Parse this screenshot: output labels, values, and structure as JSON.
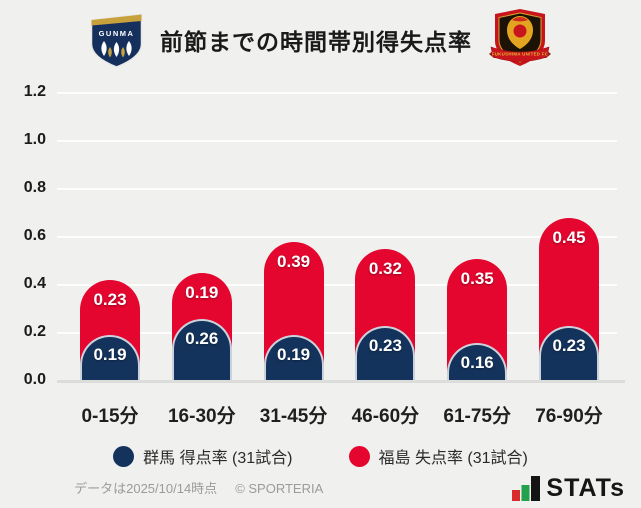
{
  "header": {
    "title": "前節までの時間帯別得失点率",
    "left_logo": "群馬 (GUNMA) クラブエンブレム",
    "right_logo": "福島 (FUKUSHIMA UNITED FC) クラブエンブレム",
    "left_logo_text": "GUNMA",
    "right_logo_text": "FUKUSHIMA UNITED FC"
  },
  "chart_data": {
    "type": "bar",
    "stacked": true,
    "title": "前節までの時間帯別得失点率",
    "categories": [
      "0-15分",
      "16-30分",
      "31-45分",
      "46-60分",
      "61-75分",
      "76-90分"
    ],
    "series": [
      {
        "name": "群馬 得点率 (31試合)",
        "color": "#14335c",
        "values": [
          0.19,
          0.26,
          0.19,
          0.23,
          0.16,
          0.23
        ]
      },
      {
        "name": "福島 失点率 (31試合)",
        "color": "#e4062f",
        "values": [
          0.23,
          0.19,
          0.39,
          0.32,
          0.35,
          0.45
        ]
      }
    ],
    "ylim": [
      0,
      1.2
    ],
    "yticks": [
      0.0,
      0.2,
      0.4,
      0.6,
      0.8,
      1.0,
      1.2
    ],
    "ytick_labels": [
      "0.0",
      "0.2",
      "0.4",
      "0.6",
      "0.8",
      "1.0",
      "1.2"
    ],
    "grid": true,
    "legend_position": "bottom",
    "colors": {
      "background": "#f0f0ee",
      "gridline": "#fdfdfc",
      "baseline": "#dcdcda",
      "value_label": "#ffffff"
    }
  },
  "legend": {
    "items": [
      {
        "label": "群馬 得点率 (31試合)",
        "color": "#14335c"
      },
      {
        "label": "福島 失点率 (31試合)",
        "color": "#e4062f"
      }
    ]
  },
  "footer": {
    "note": "データは2025/10/14時点",
    "copyright": "© SPORTERIA",
    "stats_logo": "STATs"
  }
}
